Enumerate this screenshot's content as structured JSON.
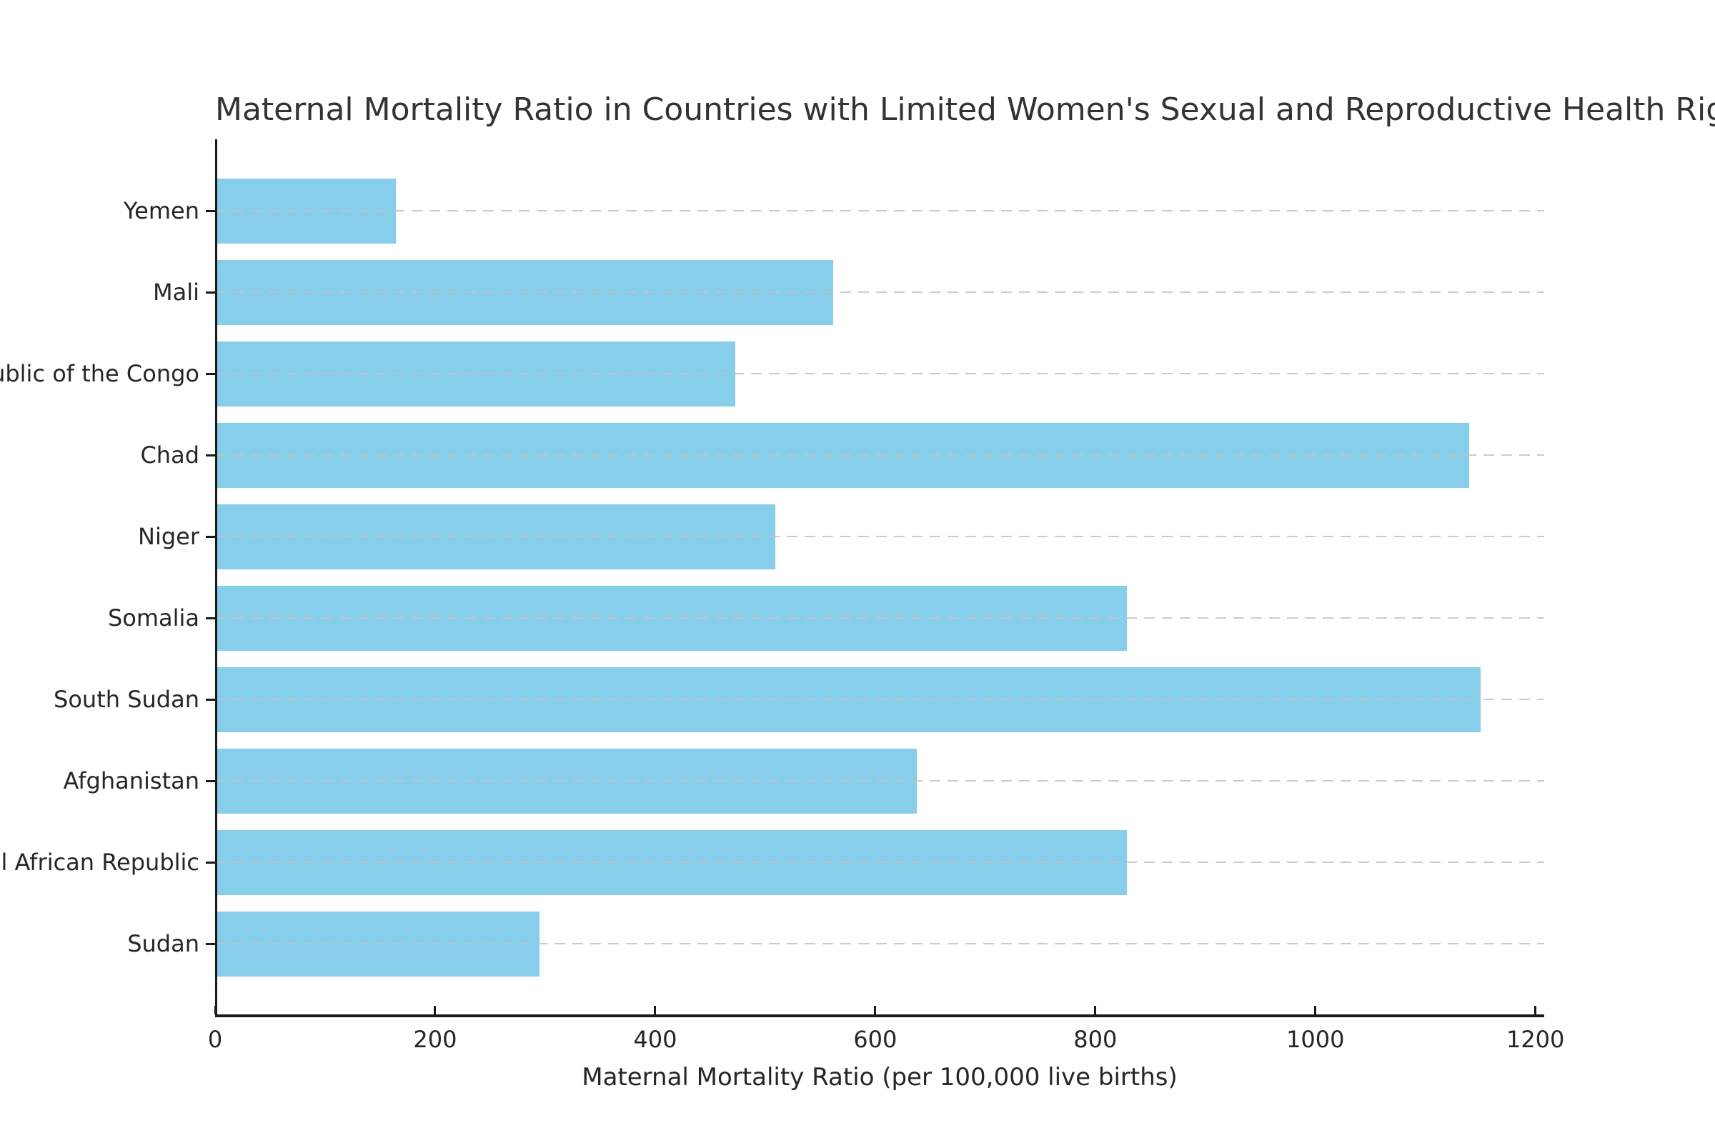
{
  "chart_data": {
    "type": "bar",
    "orientation": "horizontal",
    "title": "Maternal Mortality Ratio in Countries with Limited Women's Sexual and Reproductive Health Rights",
    "xlabel": "Maternal Mortality Ratio (per 100,000 live births)",
    "ylabel": "",
    "categories": [
      "Yemen",
      "Mali",
      "Democratic Republic of the Congo",
      "Chad",
      "Niger",
      "Somalia",
      "South Sudan",
      "Afghanistan",
      "Central African Republic",
      "Sudan"
    ],
    "values": [
      164,
      562,
      473,
      1140,
      509,
      829,
      1150,
      638,
      829,
      295
    ],
    "xlim": [
      0,
      1208
    ],
    "xticks": [
      0,
      200,
      400,
      600,
      800,
      1000,
      1200
    ],
    "grid": {
      "axis": "y",
      "linestyle": "dashed",
      "color": "#c2c2c2"
    },
    "legend": "none",
    "colors": {
      "bar": "#87CEEB",
      "text": "#262626",
      "spine": "#1a1a1a"
    }
  }
}
